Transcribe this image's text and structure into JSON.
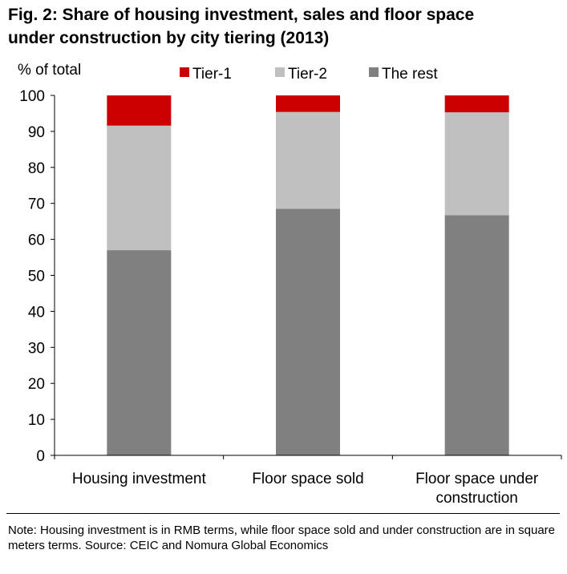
{
  "title_lines": [
    "Fig. 2: Share of housing investment, sales and floor space",
    "under construction by city tiering (2013)"
  ],
  "note": "Note: Housing investment is in RMB terms, while floor space sold and under construction are in square meters terms. Source: CEIC and Nomura Global Economics",
  "chart_data": {
    "type": "bar",
    "stacked": true,
    "categories": [
      [
        "Housing investment"
      ],
      [
        "Floor space sold"
      ],
      [
        "Floor space under",
        "construction"
      ]
    ],
    "series": [
      {
        "name": "The rest",
        "color": "#808080",
        "values": [
          57,
          68.5,
          66.7
        ]
      },
      {
        "name": "Tier-2",
        "color": "#c0c0c0",
        "values": [
          34.6,
          26.9,
          28.6
        ]
      },
      {
        "name": "Tier-1",
        "color": "#cc0000",
        "values": [
          8.4,
          4.6,
          4.7
        ]
      }
    ],
    "legend_order": [
      "Tier-1",
      "Tier-2",
      "The rest"
    ],
    "ylabel": "% of total",
    "ylim": [
      0,
      100
    ],
    "yticks": [
      0,
      10,
      20,
      30,
      40,
      50,
      60,
      70,
      80,
      90,
      100
    ],
    "grid": false,
    "legend_position": "top"
  }
}
